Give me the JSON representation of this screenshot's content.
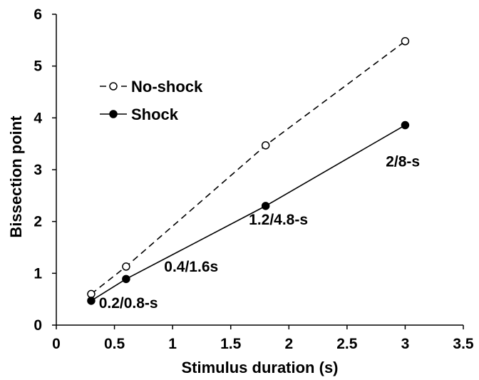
{
  "chart_data": {
    "type": "line",
    "title": "",
    "xlabel": "Stimulus duration (s)",
    "ylabel": "Bissection point",
    "xlim": [
      0,
      3.5
    ],
    "ylim": [
      0,
      6
    ],
    "xticks": [
      0,
      0.5,
      1,
      1.5,
      2,
      2.5,
      3,
      3.5
    ],
    "xtick_labels": [
      "0",
      "0.5",
      "1",
      "1.5",
      "2",
      "2.5",
      "3",
      "3.5"
    ],
    "yticks": [
      0,
      1,
      2,
      3,
      4,
      5,
      6
    ],
    "ytick_labels": [
      "0",
      "1",
      "2",
      "3",
      "4",
      "5",
      "6"
    ],
    "grid": false,
    "legend_position": "upper-left",
    "series": [
      {
        "name": "No-shock",
        "marker": "open-circle",
        "line_style": "dashed",
        "color": "#000000",
        "x": [
          0.3,
          0.6,
          1.8,
          3.0
        ],
        "y": [
          0.6,
          1.13,
          3.47,
          5.48
        ]
      },
      {
        "name": "Shock",
        "marker": "filled-circle",
        "line_style": "solid",
        "color": "#000000",
        "x": [
          0.3,
          0.6,
          1.8,
          3.0
        ],
        "y": [
          0.47,
          0.89,
          2.3,
          3.86
        ]
      }
    ],
    "annotations": [
      {
        "text": "0.2/0.8-s",
        "x": 0.62,
        "y": 0.33
      },
      {
        "text": "0.4/1.6s",
        "x": 1.16,
        "y": 1.03
      },
      {
        "text": "1.2/4.8-s",
        "x": 1.91,
        "y": 1.94
      },
      {
        "text": "2/8-s",
        "x": 2.98,
        "y": 3.06
      }
    ]
  }
}
